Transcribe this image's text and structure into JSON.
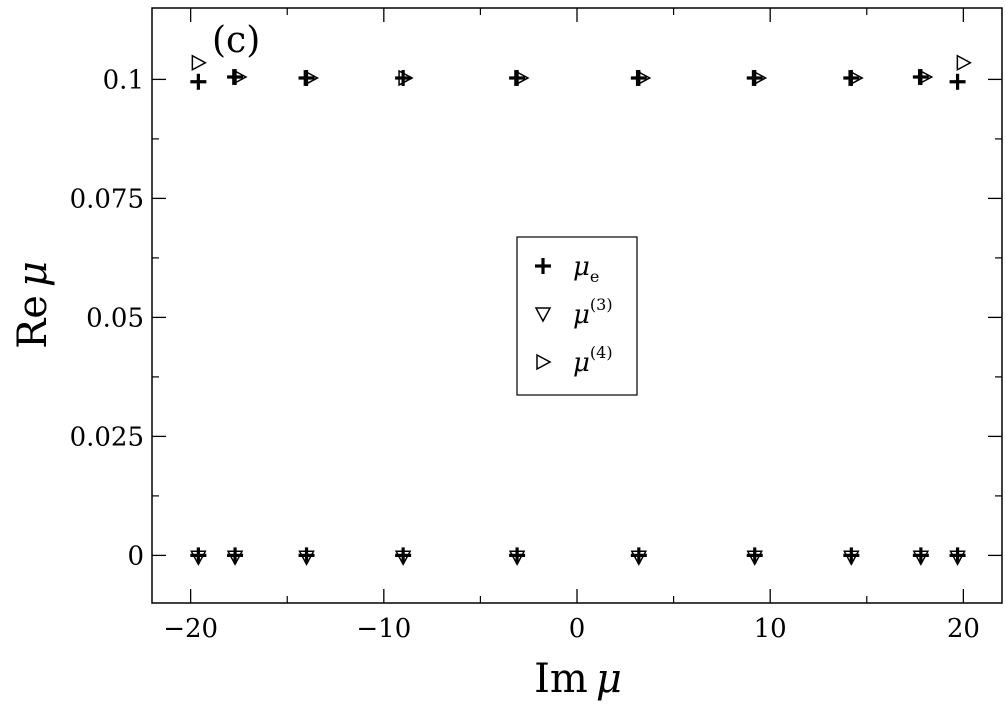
{
  "chart_data": {
    "type": "scatter",
    "panel_label": "(c)",
    "xlabel": "Im μ",
    "xlabel_prefix": "Im",
    "xlabel_symbol": "μ",
    "ylabel": "Re μ",
    "ylabel_prefix": "Re",
    "ylabel_symbol": "μ",
    "xlim": [
      -22,
      22
    ],
    "ylim": [
      -0.01,
      0.115
    ],
    "xticks": [
      -20,
      -10,
      0,
      10,
      20
    ],
    "xtick_labels": [
      "−20",
      "−10",
      "0",
      "10",
      "20"
    ],
    "xticks_minor": [
      -15,
      -5,
      5,
      15
    ],
    "yticks": [
      0,
      0.025,
      0.05,
      0.075,
      0.1
    ],
    "ytick_labels": [
      "0",
      "0.025",
      "0.05",
      "0.075",
      "0.1"
    ],
    "yticks_minor": [
      0.0125,
      0.0375,
      0.0625,
      0.0875
    ],
    "grid": false,
    "legend_position": "center",
    "series": [
      {
        "name": "μe",
        "legend_symbol": "μ",
        "legend_sub": "e",
        "legend_sup": "",
        "marker": "plus",
        "color": "#000000",
        "points": [
          {
            "x": -19.6,
            "y": 0.0995
          },
          {
            "x": -17.7,
            "y": 0.1005
          },
          {
            "x": -14.0,
            "y": 0.1003
          },
          {
            "x": -9.0,
            "y": 0.1003
          },
          {
            "x": -3.1,
            "y": 0.1003
          },
          {
            "x": 3.2,
            "y": 0.1003
          },
          {
            "x": 9.2,
            "y": 0.1003
          },
          {
            "x": 14.2,
            "y": 0.1003
          },
          {
            "x": 17.8,
            "y": 0.1005
          },
          {
            "x": 19.7,
            "y": 0.0995
          },
          {
            "x": -19.6,
            "y": 0.0
          },
          {
            "x": -17.7,
            "y": 0.0
          },
          {
            "x": -14.0,
            "y": 0.0
          },
          {
            "x": -9.0,
            "y": 0.0
          },
          {
            "x": -3.1,
            "y": 0.0
          },
          {
            "x": 3.2,
            "y": 0.0
          },
          {
            "x": 9.2,
            "y": 0.0
          },
          {
            "x": 14.2,
            "y": 0.0
          },
          {
            "x": 17.8,
            "y": 0.0
          },
          {
            "x": 19.7,
            "y": 0.0
          }
        ]
      },
      {
        "name": "μ(3)",
        "legend_symbol": "μ",
        "legend_sub": "",
        "legend_sup": "(3)",
        "marker": "triangle-down",
        "color": "#000000",
        "points": [
          {
            "x": -19.6,
            "y": -0.0004
          },
          {
            "x": -17.7,
            "y": -0.0004
          },
          {
            "x": -14.0,
            "y": -0.0004
          },
          {
            "x": -9.0,
            "y": -0.0004
          },
          {
            "x": -3.1,
            "y": -0.0004
          },
          {
            "x": 3.2,
            "y": -0.0004
          },
          {
            "x": 9.2,
            "y": -0.0004
          },
          {
            "x": 14.2,
            "y": -0.0004
          },
          {
            "x": 17.8,
            "y": -0.0004
          },
          {
            "x": 19.7,
            "y": -0.0004
          }
        ]
      },
      {
        "name": "μ(4)",
        "legend_symbol": "μ",
        "legend_sub": "",
        "legend_sup": "(4)",
        "marker": "triangle-right",
        "color": "#000000",
        "points": [
          {
            "x": -19.6,
            "y": 0.1035
          },
          {
            "x": -17.5,
            "y": 0.1005
          },
          {
            "x": -13.8,
            "y": 0.1003
          },
          {
            "x": -8.9,
            "y": 0.1003
          },
          {
            "x": -2.9,
            "y": 0.1003
          },
          {
            "x": 3.4,
            "y": 0.1003
          },
          {
            "x": 9.4,
            "y": 0.1003
          },
          {
            "x": 14.4,
            "y": 0.1003
          },
          {
            "x": 18.0,
            "y": 0.1005
          },
          {
            "x": 20.0,
            "y": 0.1035
          }
        ]
      }
    ]
  }
}
